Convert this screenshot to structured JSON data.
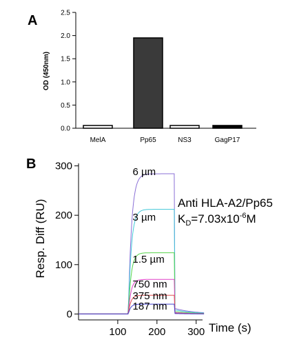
{
  "chart_data": [
    {
      "panel": "A",
      "type": "bar",
      "ylabel": "OD (450nm)",
      "categories": [
        "MelA",
        "Pp65",
        "NS3",
        "GagP17"
      ],
      "values": [
        0.06,
        1.95,
        0.06,
        0.06
      ],
      "bar_colors": [
        "#ffffff",
        "#3a3a3a",
        "#ffffff",
        "#000000"
      ],
      "ylim": [
        0,
        2.5
      ],
      "yticks": [
        "0.0",
        "0.5",
        "1.0",
        "1.5",
        "2.0",
        "2.5"
      ],
      "grid": false
    },
    {
      "panel": "B",
      "type": "line",
      "ylabel": "Resp. Diff (RU)",
      "xlabel": "Time (s)",
      "xlim": [
        0,
        340
      ],
      "ylim": [
        -12,
        305
      ],
      "xticks": [
        "100",
        "200",
        "300"
      ],
      "yticks": [
        "0",
        "100",
        "200",
        "300"
      ],
      "injection_start": 127,
      "injection_end": 245,
      "annotation_line1": "Anti HLA-A2/Pp65",
      "annotation_kd": "=7.03x10",
      "annotation_k": "K",
      "annotation_sub": "D",
      "annotation_exp": "-6",
      "annotation_unit": "M",
      "series": [
        {
          "name": "6 µm",
          "plateau": 284,
          "color": "#8a6fd6"
        },
        {
          "name": "3 µm",
          "plateau": 212,
          "color": "#40c8d8"
        },
        {
          "name": "1.5 µm",
          "plateau": 124,
          "color": "#55d34a"
        },
        {
          "name": "750 nm",
          "plateau": 70,
          "color": "#e040c8"
        },
        {
          "name": "375 nm",
          "plateau": 38,
          "color": "#e05050"
        },
        {
          "name": "187 nm",
          "plateau": 20,
          "color": "#4040d0"
        }
      ],
      "grid": false
    }
  ]
}
